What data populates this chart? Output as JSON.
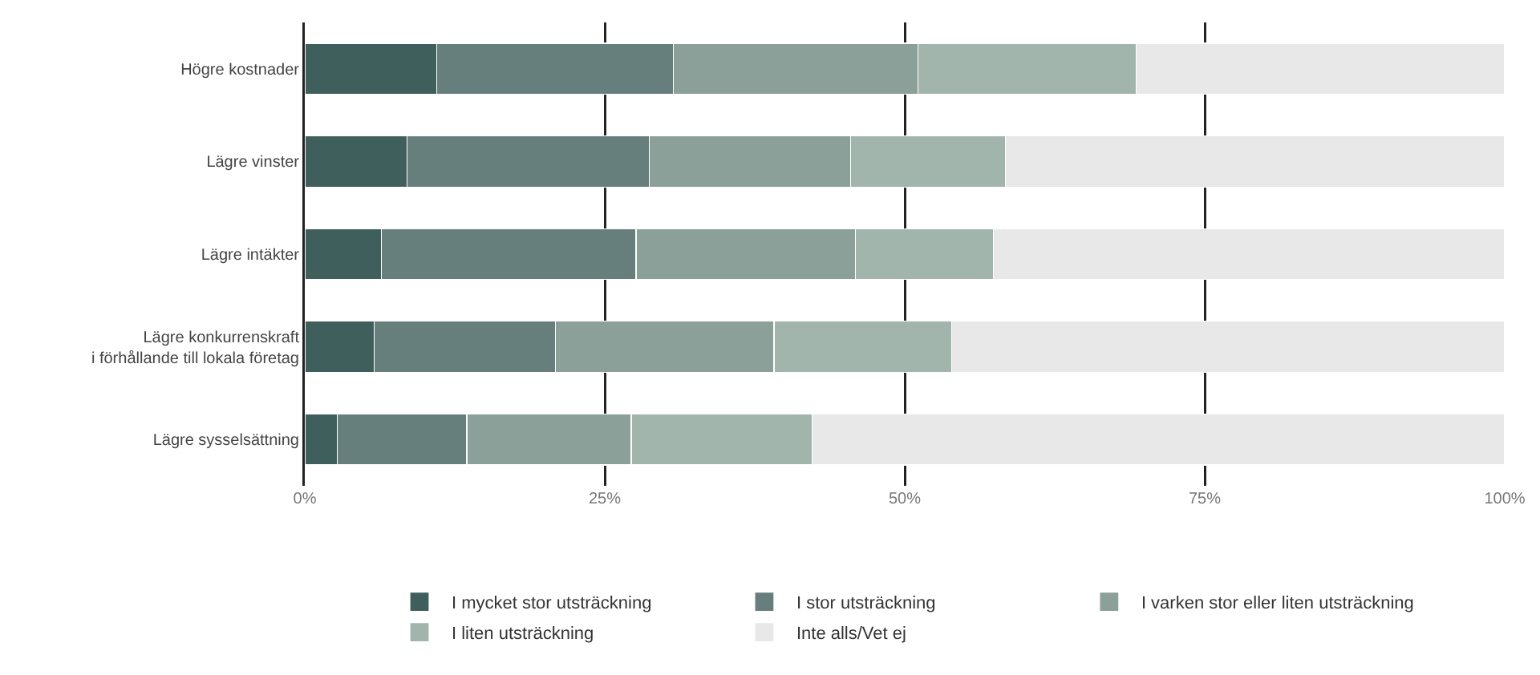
{
  "chart_data": {
    "type": "bar",
    "orientation": "horizontal",
    "stacked": true,
    "categories": [
      "Högre kostnader",
      "Lägre vinster",
      "Lägre intäkter",
      "Lägre konkurrenskraft\ni förhållande till lokala företag",
      "Lägre sysselsättning"
    ],
    "series": [
      {
        "name": "I mycket stor utsträckning",
        "color": "#3f5f5d",
        "values": [
          11.0,
          8.5,
          6.4,
          5.8,
          2.7
        ]
      },
      {
        "name": "I stor utsträckning",
        "color": "#667f7d",
        "values": [
          19.7,
          20.2,
          21.2,
          15.1,
          10.8
        ]
      },
      {
        "name": "I varken stor eller liten utsträckning",
        "color": "#8aa098",
        "values": [
          20.4,
          16.8,
          18.3,
          18.2,
          13.7
        ]
      },
      {
        "name": "I liten utsträckning",
        "color": "#a2b5ad",
        "values": [
          18.2,
          12.9,
          11.5,
          14.8,
          15.1
        ]
      },
      {
        "name": "Inte alls/Vet ej",
        "color": "#e8e8e8",
        "values": [
          30.7,
          41.6,
          42.6,
          46.1,
          57.7
        ]
      }
    ],
    "xlim": [
      0,
      100
    ],
    "xticks": [
      {
        "value": 0,
        "label": "0%"
      },
      {
        "value": 25,
        "label": "25%"
      },
      {
        "value": 50,
        "label": "50%"
      },
      {
        "value": 75,
        "label": "75%"
      },
      {
        "value": 100,
        "label": "100%"
      }
    ],
    "grid": "x",
    "legend": "bottom"
  }
}
